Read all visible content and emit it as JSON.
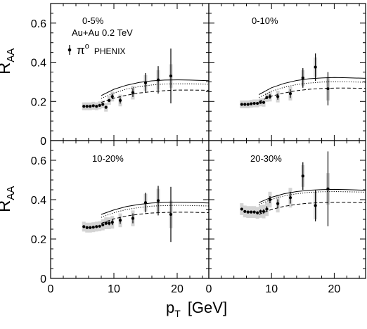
{
  "figure": {
    "ylabel_main": "R",
    "ylabel_sub": "AA",
    "xlabel_main": "p",
    "xlabel_sub": "T",
    "xlabel_unit": "[GeV]",
    "system_label": "Au+Au 0.2 TeV",
    "legend_symbol": "π",
    "legend_sup": "o",
    "legend_text": "PHENIX",
    "colors": {
      "data": "#000000",
      "syst_band": "#d4d4d4",
      "axes": "#000000",
      "background": "#ffffff"
    }
  },
  "chart_data": [
    {
      "type": "scatter",
      "title": "0-5%",
      "xlim": [
        0,
        25
      ],
      "ylim": [
        0,
        0.7
      ],
      "xticks": [
        0,
        10,
        20
      ],
      "yticks": [
        0,
        0.2,
        0.4,
        0.6
      ],
      "series": [
        {
          "name": "π0 PHENIX",
          "x": [
            5.25,
            5.75,
            6.25,
            6.75,
            7.25,
            7.75,
            8.25,
            8.75,
            9.25,
            9.75,
            11,
            13,
            15,
            17,
            19
          ],
          "y": [
            0.175,
            0.175,
            0.175,
            0.178,
            0.175,
            0.18,
            0.185,
            0.17,
            0.205,
            0.225,
            0.205,
            0.245,
            0.295,
            0.31,
            0.33
          ],
          "err": [
            0.004,
            0.004,
            0.004,
            0.004,
            0.004,
            0.005,
            0.006,
            0.007,
            0.008,
            0.012,
            0.016,
            0.022,
            0.05,
            0.07,
            0.14
          ],
          "syst": [
            0.02,
            0.02,
            0.02,
            0.02,
            0.02,
            0.02,
            0.02,
            0.022,
            0.022,
            0.025,
            0.03,
            0.035,
            0.04,
            0.05,
            0.06
          ]
        }
      ],
      "curves": [
        {
          "style": "solid",
          "x": [
            8,
            10,
            12,
            14,
            16,
            18,
            20,
            22,
            25
          ],
          "y": [
            0.23,
            0.262,
            0.283,
            0.297,
            0.305,
            0.309,
            0.31,
            0.309,
            0.306
          ]
        },
        {
          "style": "dotted",
          "x": [
            8,
            10,
            12,
            14,
            16,
            18,
            20,
            22,
            25
          ],
          "y": [
            0.215,
            0.243,
            0.263,
            0.276,
            0.284,
            0.289,
            0.29,
            0.29,
            0.288
          ]
        },
        {
          "style": "dashed",
          "x": [
            8,
            10,
            12,
            14,
            16,
            18,
            20,
            22,
            25
          ],
          "y": [
            0.195,
            0.217,
            0.232,
            0.243,
            0.25,
            0.255,
            0.258,
            0.258,
            0.257
          ]
        }
      ]
    },
    {
      "type": "scatter",
      "title": "0-10%",
      "xlim": [
        0,
        25
      ],
      "ylim": [
        0,
        0.7
      ],
      "xticks": [
        0,
        10,
        20
      ],
      "yticks": [
        0,
        0.2,
        0.4,
        0.6
      ],
      "series": [
        {
          "name": "π0 PHENIX",
          "x": [
            5.25,
            5.75,
            6.25,
            6.75,
            7.25,
            7.75,
            8.25,
            8.75,
            9.25,
            9.75,
            11,
            13,
            15,
            17,
            19
          ],
          "y": [
            0.185,
            0.185,
            0.185,
            0.188,
            0.19,
            0.19,
            0.195,
            0.195,
            0.22,
            0.225,
            0.225,
            0.24,
            0.32,
            0.375,
            0.265
          ],
          "err": [
            0.004,
            0.004,
            0.004,
            0.004,
            0.004,
            0.005,
            0.006,
            0.007,
            0.008,
            0.012,
            0.016,
            0.022,
            0.05,
            0.07,
            0.085
          ],
          "syst": [
            0.02,
            0.02,
            0.02,
            0.02,
            0.02,
            0.02,
            0.02,
            0.022,
            0.022,
            0.025,
            0.03,
            0.035,
            0.04,
            0.05,
            0.06
          ]
        }
      ],
      "curves": [
        {
          "style": "solid",
          "x": [
            8,
            10,
            12,
            14,
            16,
            18,
            20,
            22,
            25
          ],
          "y": [
            0.235,
            0.27,
            0.292,
            0.307,
            0.316,
            0.32,
            0.322,
            0.321,
            0.318
          ]
        },
        {
          "style": "dotted",
          "x": [
            8,
            10,
            12,
            14,
            16,
            18,
            20,
            22,
            25
          ],
          "y": [
            0.22,
            0.252,
            0.272,
            0.286,
            0.294,
            0.299,
            0.3,
            0.3,
            0.298
          ]
        },
        {
          "style": "dashed",
          "x": [
            8,
            10,
            12,
            14,
            16,
            18,
            20,
            22,
            25
          ],
          "y": [
            0.2,
            0.227,
            0.243,
            0.255,
            0.262,
            0.266,
            0.268,
            0.268,
            0.267
          ]
        }
      ]
    },
    {
      "type": "scatter",
      "title": "10-20%",
      "xlim": [
        0,
        25
      ],
      "ylim": [
        0,
        0.7
      ],
      "xticks": [
        0,
        10,
        20
      ],
      "yticks": [
        0,
        0.2,
        0.4,
        0.6
      ],
      "series": [
        {
          "name": "π0 PHENIX",
          "x": [
            5.25,
            5.75,
            6.25,
            6.75,
            7.25,
            7.75,
            8.25,
            8.75,
            9.25,
            9.75,
            11,
            13,
            15,
            17,
            19
          ],
          "y": [
            0.263,
            0.258,
            0.258,
            0.26,
            0.263,
            0.265,
            0.272,
            0.28,
            0.28,
            0.285,
            0.295,
            0.305,
            0.385,
            0.395,
            0.325
          ],
          "err": [
            0.005,
            0.005,
            0.005,
            0.005,
            0.006,
            0.006,
            0.007,
            0.009,
            0.01,
            0.014,
            0.018,
            0.025,
            0.05,
            0.075,
            0.14
          ],
          "syst": [
            0.025,
            0.025,
            0.025,
            0.025,
            0.025,
            0.025,
            0.028,
            0.03,
            0.03,
            0.032,
            0.035,
            0.04,
            0.045,
            0.06,
            0.07
          ]
        }
      ],
      "curves": [
        {
          "style": "solid",
          "x": [
            8,
            10,
            12,
            14,
            16,
            18,
            20,
            22,
            25
          ],
          "y": [
            0.325,
            0.348,
            0.365,
            0.376,
            0.383,
            0.386,
            0.387,
            0.386,
            0.383
          ]
        },
        {
          "style": "dotted",
          "x": [
            8,
            10,
            12,
            14,
            16,
            18,
            20,
            22,
            25
          ],
          "y": [
            0.31,
            0.334,
            0.35,
            0.36,
            0.367,
            0.37,
            0.371,
            0.37,
            0.368
          ]
        },
        {
          "style": "dashed",
          "x": [
            8,
            10,
            12,
            14,
            16,
            18,
            20,
            22,
            25
          ],
          "y": [
            0.28,
            0.302,
            0.317,
            0.326,
            0.332,
            0.335,
            0.336,
            0.336,
            0.334
          ]
        }
      ]
    },
    {
      "type": "scatter",
      "title": "20-30%",
      "xlim": [
        0,
        25
      ],
      "ylim": [
        0,
        0.7
      ],
      "xticks": [
        0,
        10,
        20
      ],
      "yticks": [
        0,
        0.2,
        0.4,
        0.6
      ],
      "series": [
        {
          "name": "π0 PHENIX",
          "x": [
            5.25,
            5.75,
            6.25,
            6.75,
            7.25,
            7.75,
            8.25,
            8.75,
            9.25,
            9.75,
            11,
            13,
            15,
            17,
            19
          ],
          "y": [
            0.352,
            0.34,
            0.337,
            0.337,
            0.337,
            0.333,
            0.34,
            0.34,
            0.352,
            0.4,
            0.38,
            0.41,
            0.52,
            0.37,
            0.455
          ],
          "err": [
            0.006,
            0.006,
            0.006,
            0.006,
            0.007,
            0.008,
            0.009,
            0.012,
            0.014,
            0.018,
            0.022,
            0.03,
            0.07,
            0.08,
            0.19
          ],
          "syst": [
            0.03,
            0.03,
            0.03,
            0.03,
            0.03,
            0.03,
            0.032,
            0.035,
            0.035,
            0.04,
            0.045,
            0.05,
            0.055,
            0.07,
            0.08
          ]
        }
      ],
      "curves": [
        {
          "style": "solid",
          "x": [
            8,
            10,
            12,
            14,
            16,
            18,
            20,
            22,
            25
          ],
          "y": [
            0.385,
            0.412,
            0.43,
            0.441,
            0.448,
            0.451,
            0.452,
            0.451,
            0.448
          ]
        },
        {
          "style": "dotted",
          "x": [
            8,
            10,
            12,
            14,
            16,
            18,
            20,
            22,
            25
          ],
          "y": [
            0.375,
            0.401,
            0.419,
            0.43,
            0.437,
            0.44,
            0.441,
            0.44,
            0.438
          ]
        },
        {
          "style": "dashed",
          "x": [
            8,
            10,
            12,
            14,
            16,
            18,
            20,
            22,
            25
          ],
          "y": [
            0.325,
            0.35,
            0.366,
            0.376,
            0.382,
            0.385,
            0.386,
            0.386,
            0.384
          ]
        }
      ]
    }
  ]
}
